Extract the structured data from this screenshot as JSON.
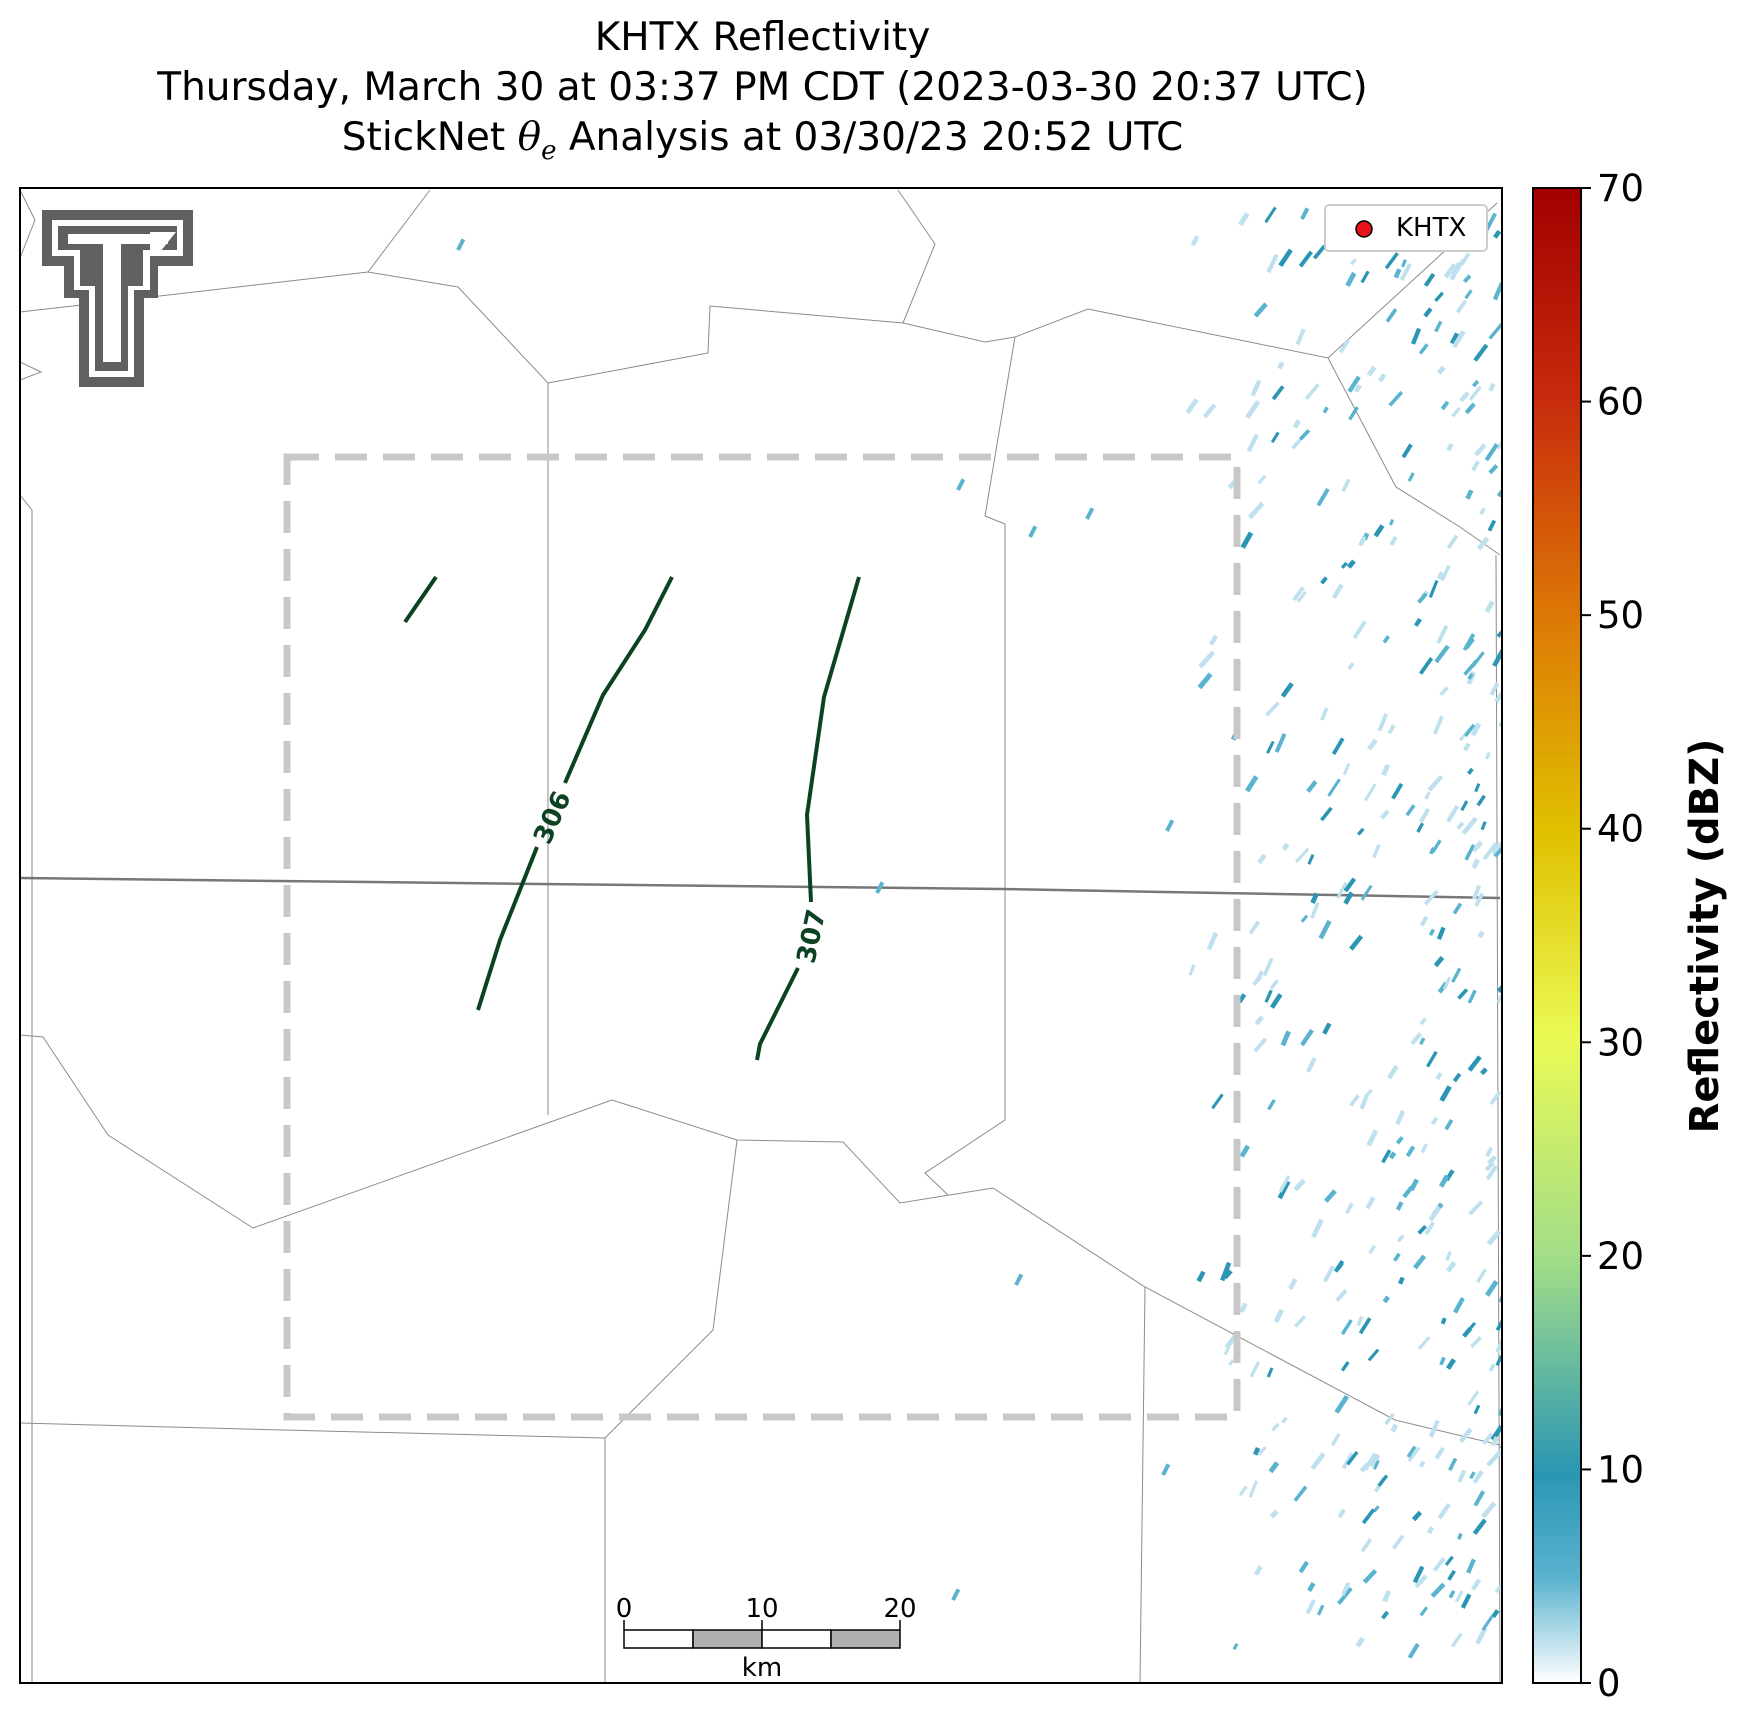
{
  "title": {
    "line1": "KHTX Reflectivity",
    "line2": "Thursday, March 30 at 03:37 PM CDT (2023-03-30 20:37 UTC)",
    "line3_prefix": "StickNet ",
    "line3_symbol": "θ",
    "line3_subscript": "e",
    "line3_suffix": " Analysis at 03/30/23 20:52 UTC"
  },
  "legend": {
    "label": "KHTX",
    "marker_color": "#e5141b"
  },
  "colorbar": {
    "label": "Reflectivity (dBZ)",
    "ticks": [
      "0",
      "10",
      "20",
      "30",
      "40",
      "50",
      "60",
      "70"
    ],
    "range": [
      0,
      70
    ]
  },
  "contours": [
    {
      "label": "306",
      "color": "#0b4221"
    },
    {
      "label": "307",
      "color": "#0b4221"
    }
  ],
  "scalebar": {
    "ticks": [
      "0",
      "10",
      "20"
    ],
    "unit": "km"
  },
  "colors": {
    "echo_light": "#bfe0ee",
    "echo_mid": "#5ab3cf",
    "echo_dark": "#2a96b4",
    "boundary": "#8c8c8c",
    "analysis_box": "#c8c8c8",
    "logo": "#606060"
  },
  "logo_icon": "texas-tech-double-t-logo"
}
